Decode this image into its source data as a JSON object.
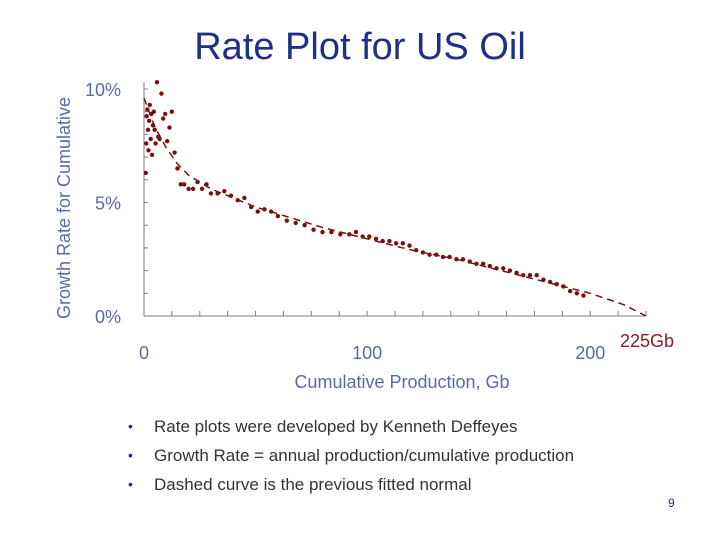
{
  "slide": {
    "title": "Rate Plot for US Oil",
    "bullets": [
      "Rate plots were developed by Kenneth Deffeyes",
      "Growth Rate = annual production/cumulative production",
      "Dashed curve is the previous fitted normal"
    ],
    "page_number": "9"
  },
  "colors": {
    "title": "#1f2f86",
    "axis_text": "#5b6ba3",
    "data": "#7a1010",
    "annotation": "#8b1a1a"
  },
  "chart_data": {
    "type": "scatter",
    "title": "",
    "xlabel": "Cumulative Production, Gb",
    "ylabel": "Growth Rate for Cumulative",
    "xlim": [
      0,
      225
    ],
    "ylim": [
      0,
      10
    ],
    "x_ticks": [
      0,
      100,
      200
    ],
    "x_tick_labels": [
      "0",
      "100",
      "200"
    ],
    "y_ticks": [
      0,
      5,
      10
    ],
    "y_tick_labels": [
      "0%",
      "5%",
      "10%"
    ],
    "annotation": "225Gb",
    "grid": false,
    "series": [
      {
        "kind": "scatter",
        "x": [
          0.8,
          1.0,
          1.2,
          1.5,
          1.8,
          2.0,
          2.3,
          2.6,
          3.0,
          3.3,
          3.6,
          4.0,
          4.4,
          4.8,
          5.2,
          5.8,
          6.4,
          7.0,
          7.8,
          8.6,
          9.5,
          10.4,
          11.4,
          12.5,
          13.7,
          15.0,
          16.5,
          18.0,
          20.0,
          22.0,
          24.0,
          26.0,
          28.0,
          30.0,
          33.0,
          36.0,
          39.0,
          42.0,
          45.0,
          48.0,
          51.0,
          54.0,
          57.0,
          60.0,
          64.0,
          68.0,
          72.0,
          76.0,
          80.0,
          84.0,
          88.0,
          92.0,
          95.0,
          98.0,
          101.0,
          104.0,
          107.0,
          110.0,
          113.0,
          116.0,
          119.0,
          122.0,
          125.0,
          128.0,
          131.0,
          134.0,
          137.0,
          140.0,
          143.0,
          146.0,
          149.0,
          152.0,
          155.0,
          158.0,
          161.0,
          164.0,
          167.0,
          170.0,
          173.0,
          176.0,
          179.0,
          182.0,
          185.0,
          188.0,
          191.0,
          194.0,
          197.0
        ],
        "y": [
          6.3,
          7.6,
          8.8,
          9.1,
          8.2,
          7.3,
          8.6,
          9.3,
          7.8,
          8.9,
          7.1,
          8.4,
          9.0,
          8.2,
          7.6,
          10.3,
          7.9,
          7.8,
          9.8,
          8.7,
          8.9,
          7.7,
          8.3,
          9.0,
          7.2,
          6.5,
          5.8,
          5.8,
          5.6,
          5.6,
          5.9,
          5.6,
          5.8,
          5.4,
          5.4,
          5.5,
          5.3,
          5.1,
          5.2,
          4.8,
          4.6,
          4.7,
          4.6,
          4.4,
          4.2,
          4.1,
          4.0,
          3.8,
          3.7,
          3.7,
          3.6,
          3.6,
          3.7,
          3.5,
          3.5,
          3.4,
          3.3,
          3.3,
          3.2,
          3.2,
          3.1,
          2.9,
          2.8,
          2.7,
          2.7,
          2.6,
          2.6,
          2.5,
          2.5,
          2.4,
          2.3,
          2.3,
          2.2,
          2.1,
          2.1,
          2.0,
          1.9,
          1.8,
          1.8,
          1.8,
          1.6,
          1.5,
          1.4,
          1.3,
          1.1,
          1.0,
          0.9
        ]
      },
      {
        "kind": "dashed-curve",
        "x": [
          0,
          5,
          10,
          15,
          20,
          30,
          40,
          50,
          60,
          80,
          100,
          120,
          140,
          160,
          180,
          200,
          215,
          225
        ],
        "y": [
          9.6,
          8.3,
          7.4,
          6.7,
          6.2,
          5.6,
          5.2,
          4.8,
          4.5,
          3.9,
          3.4,
          2.9,
          2.5,
          2.0,
          1.5,
          1.0,
          0.5,
          0.0
        ]
      }
    ]
  }
}
